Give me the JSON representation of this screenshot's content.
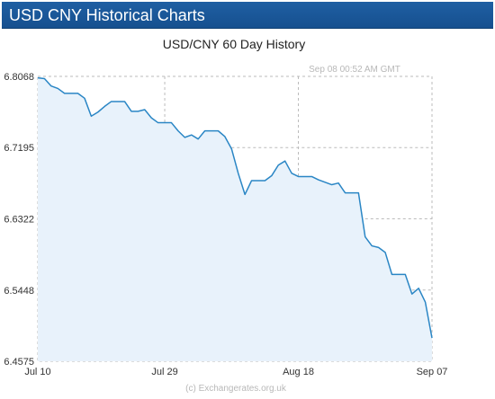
{
  "header": {
    "title": "USD CNY Historical Charts"
  },
  "chart_data": {
    "type": "area",
    "title": "USD/CNY  60 Day History",
    "timestamp": "Sep 08  00:52 AM GMT",
    "credit": "(c) Exchangerates.org.uk",
    "xlabel": "",
    "ylabel": "",
    "ylim": [
      6.4575,
      6.8068
    ],
    "y_ticks": [
      "6.8068",
      "6.7195",
      "6.6322",
      "6.5448",
      "6.4575"
    ],
    "x_ticks": [
      {
        "label": "Jul 10",
        "index": 0
      },
      {
        "label": "Jul 29",
        "index": 19
      },
      {
        "label": "Aug 18",
        "index": 39
      },
      {
        "label": "Sep 07",
        "index": 59
      }
    ],
    "grid": true,
    "legend": "none",
    "colors": {
      "line": "#2a86c5",
      "fill": "#e8f2fb",
      "grid": "#bbbbbb",
      "axis_text": "#333333",
      "header": "#1a5a9c"
    },
    "series": [
      {
        "values": [
          6.805,
          6.804,
          6.795,
          6.792,
          6.786,
          6.786,
          6.786,
          6.78,
          6.758,
          6.763,
          6.77,
          6.776,
          6.776,
          6.776,
          6.764,
          6.764,
          6.766,
          6.756,
          6.75,
          6.75,
          6.75,
          6.74,
          6.732,
          6.735,
          6.73,
          6.74,
          6.74,
          6.74,
          6.733,
          6.718,
          6.688,
          6.662,
          6.679,
          6.679,
          6.679,
          6.685,
          6.698,
          6.703,
          6.688,
          6.684,
          6.684,
          6.684,
          6.68,
          6.677,
          6.674,
          6.676,
          6.664,
          6.664,
          6.664,
          6.61,
          6.599,
          6.597,
          6.591,
          6.564,
          6.564,
          6.564,
          6.54,
          6.547,
          6.53,
          6.486
        ]
      }
    ]
  }
}
